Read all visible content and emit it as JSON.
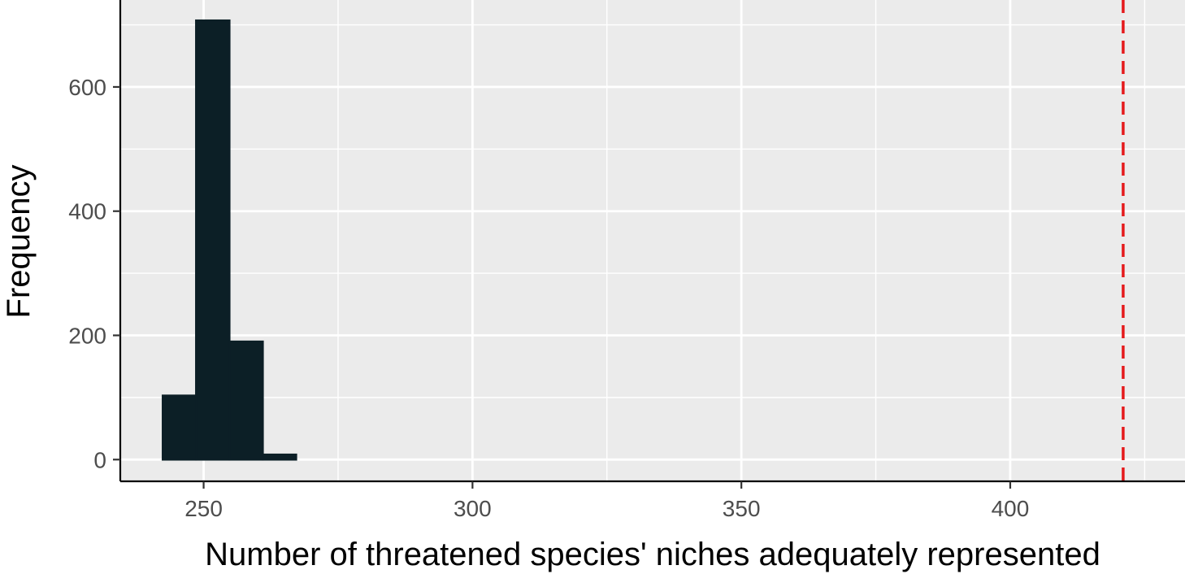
{
  "chart_data": {
    "type": "bar",
    "title": "",
    "xlabel": "Number of threatened species' niches adequately represented",
    "ylabel": "Frequency",
    "xlim": [
      234.5,
      432.5
    ],
    "ylim": [
      -35,
      740
    ],
    "x_ticks": [
      250,
      300,
      350,
      400
    ],
    "y_ticks": [
      0,
      200,
      400,
      600
    ],
    "x_tick_labels": [
      "250",
      "300",
      "350",
      "400"
    ],
    "y_tick_labels": [
      "0",
      "200",
      "400",
      "600"
    ],
    "grid": true,
    "bin_width": 6.2,
    "bins": [
      {
        "x_start": 242.4,
        "x_end": 248.6,
        "count": 103
      },
      {
        "x_start": 248.6,
        "x_end": 254.8,
        "count": 707
      },
      {
        "x_start": 254.8,
        "x_end": 261.0,
        "count": 190
      },
      {
        "x_start": 261.0,
        "x_end": 267.2,
        "count": 8
      },
      {
        "x_start": 267.2,
        "x_end": 426.9,
        "count": 0
      }
    ],
    "reference_line": {
      "x": 421.0,
      "style": "dashed",
      "color": "#e41a1c"
    },
    "colors": {
      "bar_fill": "#0c1f26",
      "panel_background": "#ebebeb",
      "grid": "#ffffff",
      "reference_line": "#e41a1c"
    }
  }
}
